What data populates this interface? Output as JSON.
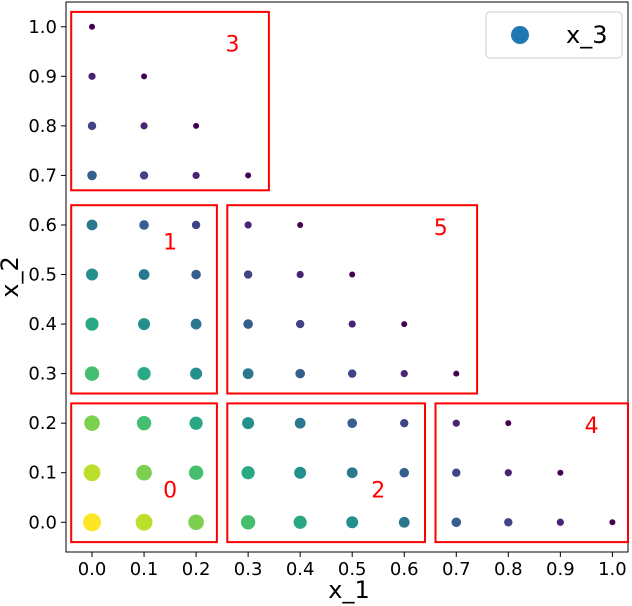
{
  "chart_data": {
    "type": "scatter",
    "xlabel": "x_1",
    "ylabel": "x_2",
    "xlim": [
      -0.05,
      1.03
    ],
    "ylim": [
      -0.06,
      1.05
    ],
    "x_ticks": [
      "0.0",
      "0.1",
      "0.2",
      "0.3",
      "0.4",
      "0.5",
      "0.6",
      "0.7",
      "0.8",
      "0.9",
      "1.0"
    ],
    "y_ticks": [
      "0.0",
      "0.1",
      "0.2",
      "0.3",
      "0.4",
      "0.5",
      "0.6",
      "0.7",
      "0.8",
      "0.9",
      "1.0"
    ],
    "grid": false,
    "legend": {
      "placement": "top-right",
      "entries": [
        {
          "label": "x_3",
          "color": "#1f77b4"
        }
      ]
    },
    "colormap": "viridis",
    "series": [
      {
        "name": "x_3",
        "points": [
          {
            "x": 0.0,
            "y": 0.0,
            "x_3": 1.0
          },
          {
            "x": 0.1,
            "y": 0.0,
            "x_3": 0.9
          },
          {
            "x": 0.2,
            "y": 0.0,
            "x_3": 0.8
          },
          {
            "x": 0.0,
            "y": 0.1,
            "x_3": 0.9
          },
          {
            "x": 0.1,
            "y": 0.1,
            "x_3": 0.8
          },
          {
            "x": 0.2,
            "y": 0.1,
            "x_3": 0.7
          },
          {
            "x": 0.0,
            "y": 0.2,
            "x_3": 0.8
          },
          {
            "x": 0.1,
            "y": 0.2,
            "x_3": 0.7
          },
          {
            "x": 0.2,
            "y": 0.2,
            "x_3": 0.6
          },
          {
            "x": 0.0,
            "y": 0.3,
            "x_3": 0.7
          },
          {
            "x": 0.1,
            "y": 0.3,
            "x_3": 0.6
          },
          {
            "x": 0.2,
            "y": 0.3,
            "x_3": 0.5
          },
          {
            "x": 0.0,
            "y": 0.4,
            "x_3": 0.6
          },
          {
            "x": 0.1,
            "y": 0.4,
            "x_3": 0.5
          },
          {
            "x": 0.2,
            "y": 0.4,
            "x_3": 0.4
          },
          {
            "x": 0.0,
            "y": 0.5,
            "x_3": 0.5
          },
          {
            "x": 0.1,
            "y": 0.5,
            "x_3": 0.4
          },
          {
            "x": 0.2,
            "y": 0.5,
            "x_3": 0.3
          },
          {
            "x": 0.0,
            "y": 0.6,
            "x_3": 0.4
          },
          {
            "x": 0.1,
            "y": 0.6,
            "x_3": 0.3
          },
          {
            "x": 0.2,
            "y": 0.6,
            "x_3": 0.2
          },
          {
            "x": 0.0,
            "y": 0.7,
            "x_3": 0.3
          },
          {
            "x": 0.1,
            "y": 0.7,
            "x_3": 0.2
          },
          {
            "x": 0.2,
            "y": 0.7,
            "x_3": 0.1
          },
          {
            "x": 0.3,
            "y": 0.7,
            "x_3": 0.0
          },
          {
            "x": 0.0,
            "y": 0.8,
            "x_3": 0.2
          },
          {
            "x": 0.1,
            "y": 0.8,
            "x_3": 0.1
          },
          {
            "x": 0.2,
            "y": 0.8,
            "x_3": 0.0
          },
          {
            "x": 0.0,
            "y": 0.9,
            "x_3": 0.1
          },
          {
            "x": 0.1,
            "y": 0.9,
            "x_3": 0.0
          },
          {
            "x": 0.0,
            "y": 1.0,
            "x_3": 0.0
          },
          {
            "x": 0.3,
            "y": 0.0,
            "x_3": 0.7
          },
          {
            "x": 0.4,
            "y": 0.0,
            "x_3": 0.6
          },
          {
            "x": 0.5,
            "y": 0.0,
            "x_3": 0.5
          },
          {
            "x": 0.6,
            "y": 0.0,
            "x_3": 0.4
          },
          {
            "x": 0.3,
            "y": 0.1,
            "x_3": 0.6
          },
          {
            "x": 0.4,
            "y": 0.1,
            "x_3": 0.5
          },
          {
            "x": 0.5,
            "y": 0.1,
            "x_3": 0.4
          },
          {
            "x": 0.6,
            "y": 0.1,
            "x_3": 0.3
          },
          {
            "x": 0.3,
            "y": 0.2,
            "x_3": 0.5
          },
          {
            "x": 0.4,
            "y": 0.2,
            "x_3": 0.4
          },
          {
            "x": 0.5,
            "y": 0.2,
            "x_3": 0.3
          },
          {
            "x": 0.6,
            "y": 0.2,
            "x_3": 0.2
          },
          {
            "x": 0.3,
            "y": 0.3,
            "x_3": 0.4
          },
          {
            "x": 0.4,
            "y": 0.3,
            "x_3": 0.3
          },
          {
            "x": 0.5,
            "y": 0.3,
            "x_3": 0.2
          },
          {
            "x": 0.6,
            "y": 0.3,
            "x_3": 0.1
          },
          {
            "x": 0.7,
            "y": 0.3,
            "x_3": 0.0
          },
          {
            "x": 0.3,
            "y": 0.4,
            "x_3": 0.3
          },
          {
            "x": 0.4,
            "y": 0.4,
            "x_3": 0.2
          },
          {
            "x": 0.5,
            "y": 0.4,
            "x_3": 0.1
          },
          {
            "x": 0.6,
            "y": 0.4,
            "x_3": 0.0
          },
          {
            "x": 0.3,
            "y": 0.5,
            "x_3": 0.2
          },
          {
            "x": 0.4,
            "y": 0.5,
            "x_3": 0.1
          },
          {
            "x": 0.5,
            "y": 0.5,
            "x_3": 0.0
          },
          {
            "x": 0.3,
            "y": 0.6,
            "x_3": 0.1
          },
          {
            "x": 0.4,
            "y": 0.6,
            "x_3": 0.0
          },
          {
            "x": 0.7,
            "y": 0.0,
            "x_3": 0.3
          },
          {
            "x": 0.8,
            "y": 0.0,
            "x_3": 0.2
          },
          {
            "x": 0.9,
            "y": 0.0,
            "x_3": 0.1
          },
          {
            "x": 1.0,
            "y": 0.0,
            "x_3": 0.0
          },
          {
            "x": 0.7,
            "y": 0.1,
            "x_3": 0.2
          },
          {
            "x": 0.8,
            "y": 0.1,
            "x_3": 0.1
          },
          {
            "x": 0.9,
            "y": 0.1,
            "x_3": 0.0
          },
          {
            "x": 0.7,
            "y": 0.2,
            "x_3": 0.1
          },
          {
            "x": 0.8,
            "y": 0.2,
            "x_3": 0.0
          }
        ]
      }
    ],
    "regions": [
      {
        "label": "0",
        "x_range": [
          -0.04,
          0.24
        ],
        "y_range": [
          -0.04,
          0.24
        ]
      },
      {
        "label": "1",
        "x_range": [
          -0.04,
          0.24
        ],
        "y_range": [
          0.26,
          0.64
        ]
      },
      {
        "label": "2",
        "x_range": [
          0.26,
          0.64
        ],
        "y_range": [
          -0.04,
          0.24
        ]
      },
      {
        "label": "3",
        "x_range": [
          -0.04,
          0.34
        ],
        "y_range": [
          0.67,
          1.03
        ]
      },
      {
        "label": "4",
        "x_range": [
          0.66,
          1.03
        ],
        "y_range": [
          -0.04,
          0.24
        ]
      },
      {
        "label": "5",
        "x_range": [
          0.26,
          0.74
        ],
        "y_range": [
          0.26,
          0.64
        ]
      }
    ],
    "region_label_positions": [
      {
        "label": "0",
        "x": 0.15,
        "y": 0.05
      },
      {
        "label": "1",
        "x": 0.15,
        "y": 0.55
      },
      {
        "label": "2",
        "x": 0.55,
        "y": 0.05
      },
      {
        "label": "3",
        "x": 0.27,
        "y": 0.95
      },
      {
        "label": "4",
        "x": 0.96,
        "y": 0.18
      },
      {
        "label": "5",
        "x": 0.67,
        "y": 0.58
      }
    ]
  }
}
